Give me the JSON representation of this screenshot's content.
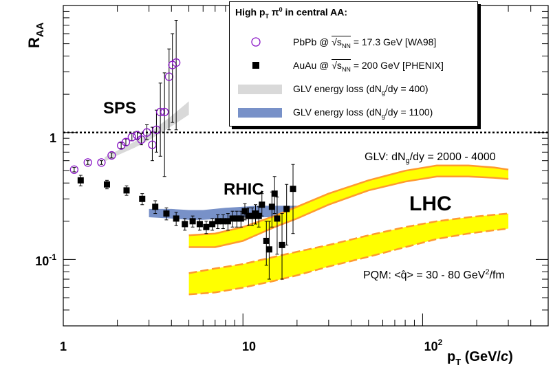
{
  "chart_data": {
    "type": "scatter",
    "xscale": "log",
    "yscale": "log",
    "xlim": [
      1,
      500
    ],
    "ylim": [
      0.03,
      10
    ],
    "xlabel": "p_T (GeV/c)",
    "ylabel": "R_AA",
    "x_tick_labels": [
      "1",
      "10",
      "10^2"
    ],
    "y_tick_labels": [
      "10^-1",
      "1"
    ],
    "reference_line": {
      "y": 1,
      "style": "dotted"
    },
    "legend": {
      "title": "High p_T π^0 in central AA:",
      "entries": [
        {
          "label": "PbPb @ √s_NN = 17.3 GeV [WA98]",
          "symbol": "open-circle",
          "color": "#8a16c6"
        },
        {
          "label": "AuAu @ √s_NN = 200 GeV [PHENIX]",
          "symbol": "filled-square",
          "color": "#000000"
        },
        {
          "label": "GLV energy loss (dN_g/dy = 400)",
          "symbol": "band",
          "color": "#d9d9d9"
        },
        {
          "label": "GLV energy loss (dN_g/dy = 1100)",
          "symbol": "band",
          "color": "#7891c8"
        }
      ],
      "placement": "top-right"
    },
    "annotations": {
      "sps": "SPS",
      "rhic": "RHIC",
      "lhc": "LHC",
      "glv": "GLV: dN_g/dy = 2000 - 4000",
      "pqm": "PQM: <q̂> = 30 - 80 GeV²/fm"
    },
    "series": [
      {
        "name": "PbPb @ √s_NN = 17.3 GeV [WA98]",
        "marker": "open-circle",
        "color": "#8a16c6",
        "points": [
          {
            "x": 1.15,
            "y": 0.51,
            "elo": 0.02,
            "ehi": 0.02
          },
          {
            "x": 1.37,
            "y": 0.58,
            "elo": 0.02,
            "ehi": 0.02
          },
          {
            "x": 1.63,
            "y": 0.58,
            "elo": 0.02,
            "ehi": 0.02
          },
          {
            "x": 1.86,
            "y": 0.66,
            "elo": 0.03,
            "ehi": 0.03
          },
          {
            "x": 2.1,
            "y": 0.79,
            "elo": 0.04,
            "ehi": 0.04
          },
          {
            "x": 2.23,
            "y": 0.84,
            "elo": 0.05,
            "ehi": 0.05
          },
          {
            "x": 2.41,
            "y": 0.92,
            "elo": 0.06,
            "ehi": 0.06
          },
          {
            "x": 2.58,
            "y": 0.95,
            "elo": 0.07,
            "ehi": 0.07
          },
          {
            "x": 2.72,
            "y": 0.88,
            "elo": 0.08,
            "ehi": 0.1
          },
          {
            "x": 2.92,
            "y": 1.0,
            "elo": 0.12,
            "ehi": 0.15
          },
          {
            "x": 3.13,
            "y": 0.8,
            "elo": 0.2,
            "ehi": 0.3
          },
          {
            "x": 3.3,
            "y": 1.05,
            "elo": 0.35,
            "ehi": 0.45
          },
          {
            "x": 3.47,
            "y": 1.45,
            "elo": 0.8,
            "ehi": 1.0
          },
          {
            "x": 3.66,
            "y": 1.45,
            "elo": 1.0,
            "ehi": 1.5
          },
          {
            "x": 3.88,
            "y": 2.75,
            "elo": 1.7,
            "ehi": 1.8
          },
          {
            "x": 4.05,
            "y": 3.4,
            "elo": 2.2,
            "ehi": 2.6
          },
          {
            "x": 4.25,
            "y": 3.55,
            "elo": 2.5,
            "ehi": 4.1
          }
        ]
      },
      {
        "name": "AuAu @ √s_NN = 200 GeV [PHENIX]",
        "marker": "filled-square",
        "color": "#000000",
        "points": [
          {
            "x": 1.25,
            "y": 0.42,
            "elo": 0.04,
            "ehi": 0.04
          },
          {
            "x": 1.75,
            "y": 0.39,
            "elo": 0.03,
            "ehi": 0.03
          },
          {
            "x": 2.25,
            "y": 0.35,
            "elo": 0.03,
            "ehi": 0.03
          },
          {
            "x": 2.75,
            "y": 0.3,
            "elo": 0.03,
            "ehi": 0.03
          },
          {
            "x": 3.25,
            "y": 0.26,
            "elo": 0.03,
            "ehi": 0.03
          },
          {
            "x": 3.75,
            "y": 0.23,
            "elo": 0.025,
            "ehi": 0.025
          },
          {
            "x": 4.25,
            "y": 0.21,
            "elo": 0.025,
            "ehi": 0.025
          },
          {
            "x": 4.75,
            "y": 0.19,
            "elo": 0.02,
            "ehi": 0.02
          },
          {
            "x": 5.25,
            "y": 0.2,
            "elo": 0.02,
            "ehi": 0.02
          },
          {
            "x": 5.75,
            "y": 0.19,
            "elo": 0.02,
            "ehi": 0.02
          },
          {
            "x": 6.25,
            "y": 0.18,
            "elo": 0.02,
            "ehi": 0.02
          },
          {
            "x": 6.75,
            "y": 0.19,
            "elo": 0.02,
            "ehi": 0.02
          },
          {
            "x": 7.25,
            "y": 0.2,
            "elo": 0.025,
            "ehi": 0.025
          },
          {
            "x": 7.75,
            "y": 0.2,
            "elo": 0.025,
            "ehi": 0.025
          },
          {
            "x": 8.25,
            "y": 0.2,
            "elo": 0.03,
            "ehi": 0.03
          },
          {
            "x": 8.75,
            "y": 0.21,
            "elo": 0.03,
            "ehi": 0.03
          },
          {
            "x": 9.25,
            "y": 0.21,
            "elo": 0.03,
            "ehi": 0.03
          },
          {
            "x": 9.75,
            "y": 0.21,
            "elo": 0.03,
            "ehi": 0.03
          },
          {
            "x": 10.25,
            "y": 0.24,
            "elo": 0.035,
            "ehi": 0.035
          },
          {
            "x": 10.75,
            "y": 0.22,
            "elo": 0.035,
            "ehi": 0.035
          },
          {
            "x": 11.25,
            "y": 0.22,
            "elo": 0.035,
            "ehi": 0.035
          },
          {
            "x": 11.75,
            "y": 0.23,
            "elo": 0.04,
            "ehi": 0.04
          },
          {
            "x": 12.25,
            "y": 0.22,
            "elo": 0.04,
            "ehi": 0.04
          },
          {
            "x": 12.75,
            "y": 0.27,
            "elo": 0.05,
            "ehi": 0.06
          },
          {
            "x": 13.5,
            "y": 0.14,
            "elo": 0.05,
            "ehi": 0.06
          },
          {
            "x": 14.0,
            "y": 0.12,
            "elo": 0.05,
            "ehi": 0.08
          },
          {
            "x": 14.5,
            "y": 0.26,
            "elo": 0.08,
            "ehi": 0.08
          },
          {
            "x": 15.0,
            "y": 0.33,
            "elo": 0.1,
            "ehi": 0.12
          },
          {
            "x": 15.5,
            "y": 0.21,
            "elo": 0.1,
            "ehi": 0.1
          },
          {
            "x": 16.5,
            "y": 0.13,
            "elo": 0.06,
            "ehi": 0.1
          },
          {
            "x": 17.5,
            "y": 0.25,
            "elo": 0.12,
            "ehi": 0.14
          },
          {
            "x": 19.0,
            "y": 0.36,
            "elo": 0.2,
            "ehi": 0.2
          }
        ]
      },
      {
        "name": "GLV energy loss (dN_g/dy = 400)",
        "type": "band",
        "color": "#d9d9d9",
        "x": [
          1.7,
          2.0,
          2.5,
          3.0,
          4.0,
          5.0
        ],
        "ylow": [
          0.59,
          0.66,
          0.76,
          0.87,
          1.12,
          1.38
        ],
        "yhigh": [
          0.64,
          0.72,
          0.85,
          0.99,
          1.35,
          1.76
        ]
      },
      {
        "name": "GLV energy loss (dN_g/dy = 1100)",
        "type": "band",
        "color": "#7891c8",
        "x": [
          3.0,
          4.0,
          5.0,
          6.0,
          8.0,
          10.0,
          12.0,
          15.0,
          20.0
        ],
        "ylow": [
          0.215,
          0.21,
          0.205,
          0.205,
          0.21,
          0.215,
          0.215,
          0.215,
          0.215
        ],
        "yhigh": [
          0.25,
          0.25,
          0.245,
          0.245,
          0.255,
          0.26,
          0.265,
          0.265,
          0.265
        ]
      },
      {
        "name": "GLV: dN_g/dy = 2000 - 4000",
        "type": "band",
        "color": "#ffff00",
        "edge_color": "#ff9a2e",
        "x": [
          5,
          7,
          10,
          15,
          20,
          30,
          50,
          80,
          120,
          180,
          250,
          300
        ],
        "ylow": [
          0.125,
          0.125,
          0.14,
          0.18,
          0.21,
          0.27,
          0.35,
          0.41,
          0.45,
          0.45,
          0.44,
          0.43
        ],
        "yhigh": [
          0.155,
          0.16,
          0.18,
          0.22,
          0.26,
          0.33,
          0.42,
          0.5,
          0.55,
          0.55,
          0.53,
          0.51
        ]
      },
      {
        "name": "PQM: <q̂> = 30 - 80 GeV²/fm",
        "type": "band",
        "color": "#ffff00",
        "edge_color": "#ff9a2e",
        "edge_style": "dashed",
        "x": [
          5,
          7,
          10,
          15,
          20,
          30,
          50,
          80,
          120,
          180,
          250,
          300
        ],
        "ylow": [
          0.053,
          0.055,
          0.06,
          0.068,
          0.075,
          0.088,
          0.105,
          0.125,
          0.145,
          0.16,
          0.17,
          0.175
        ],
        "yhigh": [
          0.078,
          0.085,
          0.092,
          0.105,
          0.115,
          0.13,
          0.155,
          0.18,
          0.2,
          0.215,
          0.225,
          0.23
        ]
      }
    ]
  }
}
